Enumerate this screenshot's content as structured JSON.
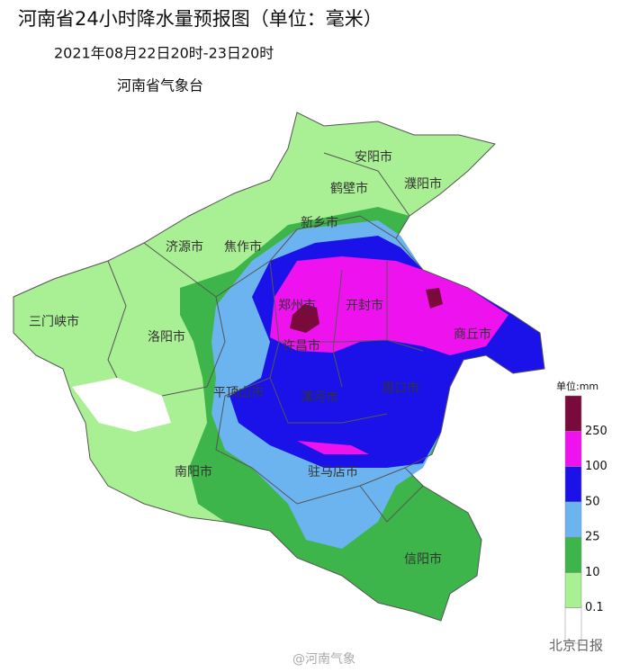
{
  "header": {
    "title": "河南省24小时降水量预报图（单位：毫米）",
    "period": "2021年08月22日20时-23日20时",
    "agency": "河南省气象台"
  },
  "cities": [
    "安阳市",
    "鹤壁市",
    "濮阳市",
    "新乡市",
    "济源市",
    "焦作市",
    "三门峡市",
    "郑州市",
    "开封市",
    "洛阳市",
    "许昌市",
    "商丘市",
    "平顶山市",
    "漯河市",
    "周口市",
    "南阳市",
    "驻马店市",
    "信阳市"
  ],
  "legend": {
    "unit": "单位:mm",
    "colors": [
      "#ffffff",
      "#a9ef93",
      "#3db54a",
      "#6cb4f0",
      "#1a12e8",
      "#ee12ee",
      "#7a0a3c"
    ],
    "ticks": [
      0.1,
      10,
      25,
      50,
      100,
      250
    ]
  },
  "watermarks": [
    "@河南气象",
    "北京日报"
  ]
}
